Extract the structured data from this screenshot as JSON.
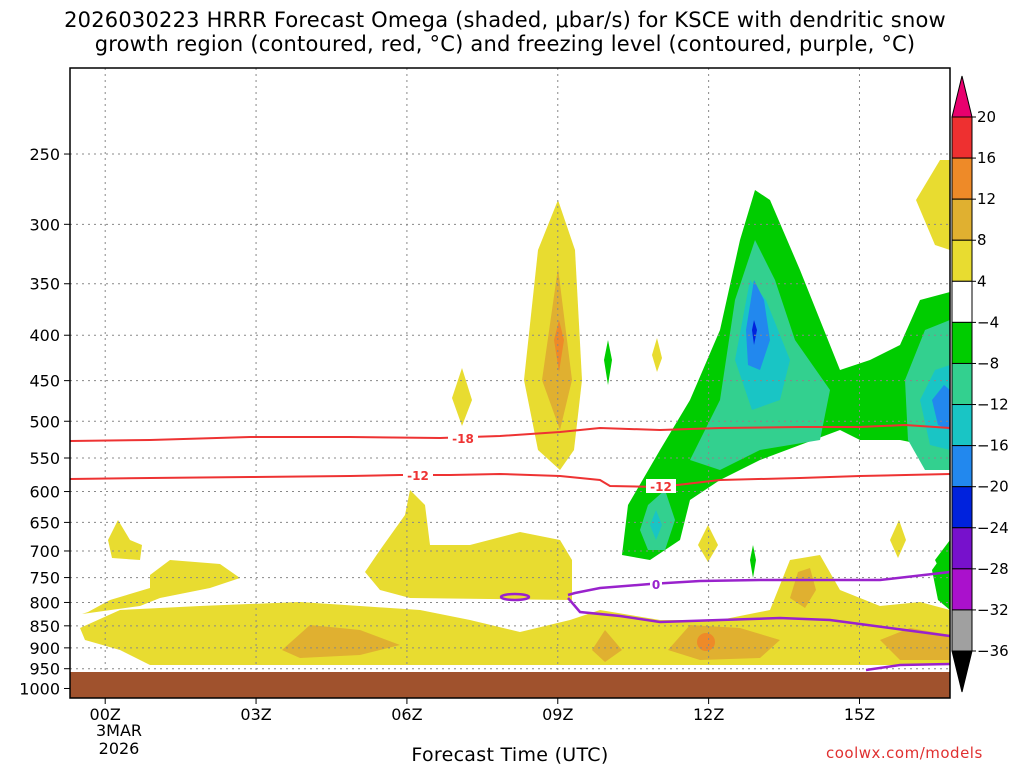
{
  "title": "2026030223 HRRR Forecast Omega (shaded, μbar/s) for KSCE with dendritic snow\ngrowth region (contoured, red, °C) and freezing level (contoured, purple, °C)",
  "credit": "coolwx.com/models",
  "chart_data": {
    "type": "heatmap",
    "title": "2026030223 HRRR Forecast Omega (shaded, μbar/s) for KSCE with dendritic snow growth region (contoured, red, °C) and freezing level (contoured, purple, °C)",
    "xlabel": "Forecast Time (UTC)",
    "ylabel": "",
    "x_ticks": [
      "00Z",
      "03Z",
      "06Z",
      "09Z",
      "12Z",
      "15Z"
    ],
    "x_date_label": [
      "3MAR",
      "2026"
    ],
    "x_range_hours": [
      -0.7,
      16.8
    ],
    "y_ticks": [
      250,
      300,
      350,
      400,
      450,
      500,
      550,
      600,
      650,
      700,
      750,
      800,
      850,
      900,
      950,
      1000
    ],
    "y_range_hpa": [
      1025,
      200
    ],
    "y_scale": "log-pressure (inverted)",
    "grid": true,
    "colorbar": {
      "labels": [
        "20",
        "16",
        "12",
        "8",
        "4",
        "−4",
        "−8",
        "−12",
        "−16",
        "−20",
        "−24",
        "−28",
        "−32",
        "−36"
      ],
      "colors": [
        "#e8006e",
        "#ee3030",
        "#ee8a28",
        "#e0b030",
        "#e8dc30",
        "#ffffff",
        "#00cc00",
        "#33d08f",
        "#19c5c5",
        "#2288ee",
        "#0022dd",
        "#7711cc",
        "#aa11cc",
        "#a0a0a0",
        "#000000"
      ]
    },
    "contours": {
      "dendritic_red": [
        {
          "label": "-18",
          "pressure_hpa_approx": 540
        },
        {
          "label": "-12",
          "pressure_hpa_approx": 600
        }
      ],
      "freezing_purple": [
        {
          "label": "0",
          "pressure_hpa_approx": 800
        }
      ]
    },
    "terrain_hpa": 975
  }
}
